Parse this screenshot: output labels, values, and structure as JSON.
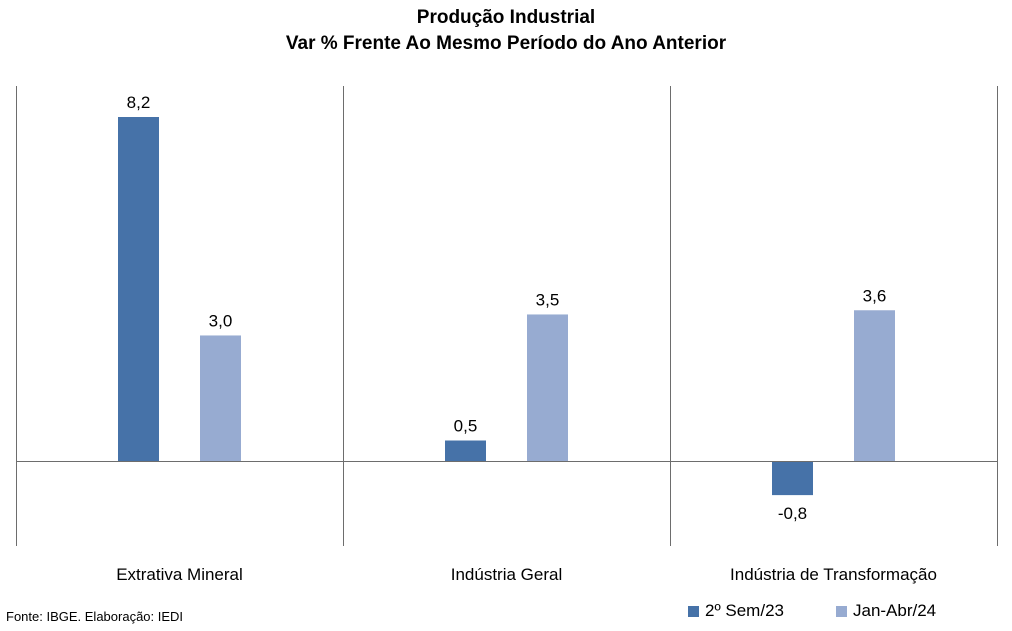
{
  "chart_data": {
    "type": "bar",
    "title": "Produção Industrial",
    "subtitle": "Var % Frente Ao Mesmo Período do Ano Anterior",
    "categories": [
      "Extrativa Mineral",
      "Indústria Geral",
      "Indústria de Transformação"
    ],
    "series": [
      {
        "name": "2º Sem/23",
        "values": [
          8.2,
          0.5,
          -0.8
        ],
        "labels": [
          "8,2",
          "0,5",
          "-0,8"
        ],
        "color": "#4672A8"
      },
      {
        "name": "Jan-Abr/24",
        "values": [
          3.0,
          3.5,
          3.6
        ],
        "labels": [
          "3,0",
          "3,5",
          "3,6"
        ],
        "color": "#97ABD1"
      }
    ],
    "ylim": [
      -2,
      9
    ],
    "grid": false,
    "legend_position": "bottom-right",
    "xlabel": "",
    "ylabel": ""
  },
  "source": "Fonte: IBGE. Elaboração: IEDI"
}
